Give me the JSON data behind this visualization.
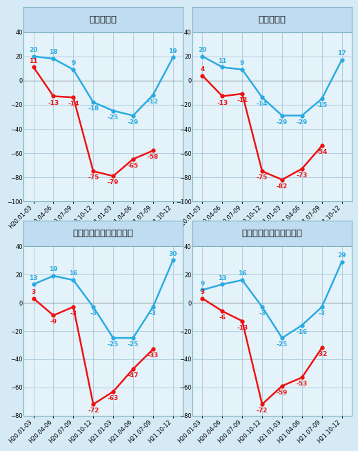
{
  "x_labels": [
    "H20.01-03",
    "H20.04-06",
    "H20.07-09",
    "H20.10-12",
    "H21.01-03",
    "H21.04-06",
    "H21.07-09",
    "H21.10-12"
  ],
  "charts": [
    {
      "title": "総受注戸数",
      "blue": [
        20,
        18,
        9,
        -18,
        -25,
        -29,
        -12,
        19
      ],
      "red": [
        11,
        -13,
        -14,
        -75,
        -79,
        -65,
        -58,
        null
      ],
      "ylim": [
        -100,
        40
      ]
    },
    {
      "title": "総受注金額",
      "blue": [
        20,
        11,
        9,
        -14,
        -29,
        -29,
        -15,
        17
      ],
      "red": [
        4,
        -13,
        -11,
        -75,
        -82,
        -73,
        -54,
        null
      ],
      "ylim": [
        -100,
        40
      ]
    },
    {
      "title": "戸建て注文住宅受注戸数",
      "blue": [
        13,
        19,
        16,
        -3,
        -25,
        -25,
        -3,
        30
      ],
      "red": [
        3,
        -9,
        -3,
        -72,
        -63,
        -47,
        -33,
        null
      ],
      "ylim": [
        -80,
        40
      ]
    },
    {
      "title": "戸建て注文住宅受注金額",
      "blue": [
        9,
        13,
        16,
        -3,
        -25,
        -16,
        -3,
        29
      ],
      "red": [
        3,
        -6,
        -13,
        -72,
        -59,
        -53,
        -32,
        null
      ],
      "ylim": [
        -80,
        40
      ]
    }
  ],
  "blue_color": "#29ABE2",
  "red_color": "#EE1111",
  "bg_color": "#D6EAF5",
  "plot_bg_color": "#E4F2F9",
  "title_bg_color": "#C0DCF0",
  "grid_color": "#A8C8DC",
  "title_fontsize": 9.5,
  "label_fontsize": 6.0,
  "value_fontsize": 6.5
}
